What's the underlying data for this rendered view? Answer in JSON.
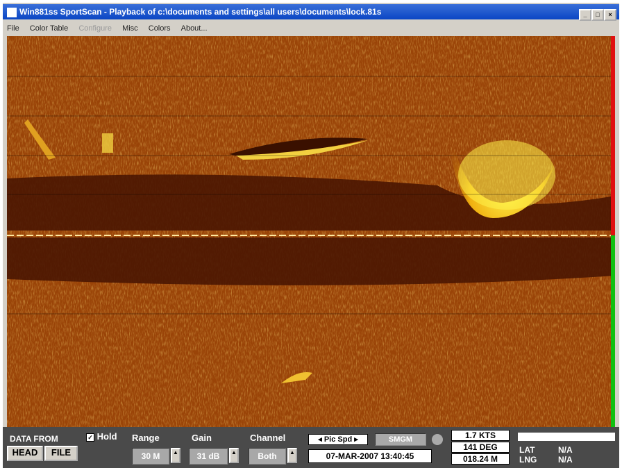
{
  "window": {
    "title": "Win881ss SportScan - Playback of c:\\documents and settings\\all users\\documents\\lock.81s"
  },
  "menu": [
    "File",
    "Color Table",
    "Configure",
    "Misc",
    "Colors",
    "About..."
  ],
  "status": {
    "data_from": "DATA FROM",
    "head": "HEAD",
    "file": "FILE",
    "hold": "Hold",
    "range_label": "Range",
    "range": "30 M",
    "gain_label": "Gain",
    "gain": "31 dB",
    "channel_label": "Channel",
    "channel": "Both",
    "pic_spd": "Pic Spd",
    "smgm": "SMGM",
    "datetime": "07-MAR-2007  13:40:45",
    "speed": "1.7 KTS",
    "heading": "141 DEG",
    "depth": "018.24 M",
    "lat_label": "LAT",
    "lng_label": "LNG",
    "lat": "N/A",
    "lng": "N/A"
  }
}
